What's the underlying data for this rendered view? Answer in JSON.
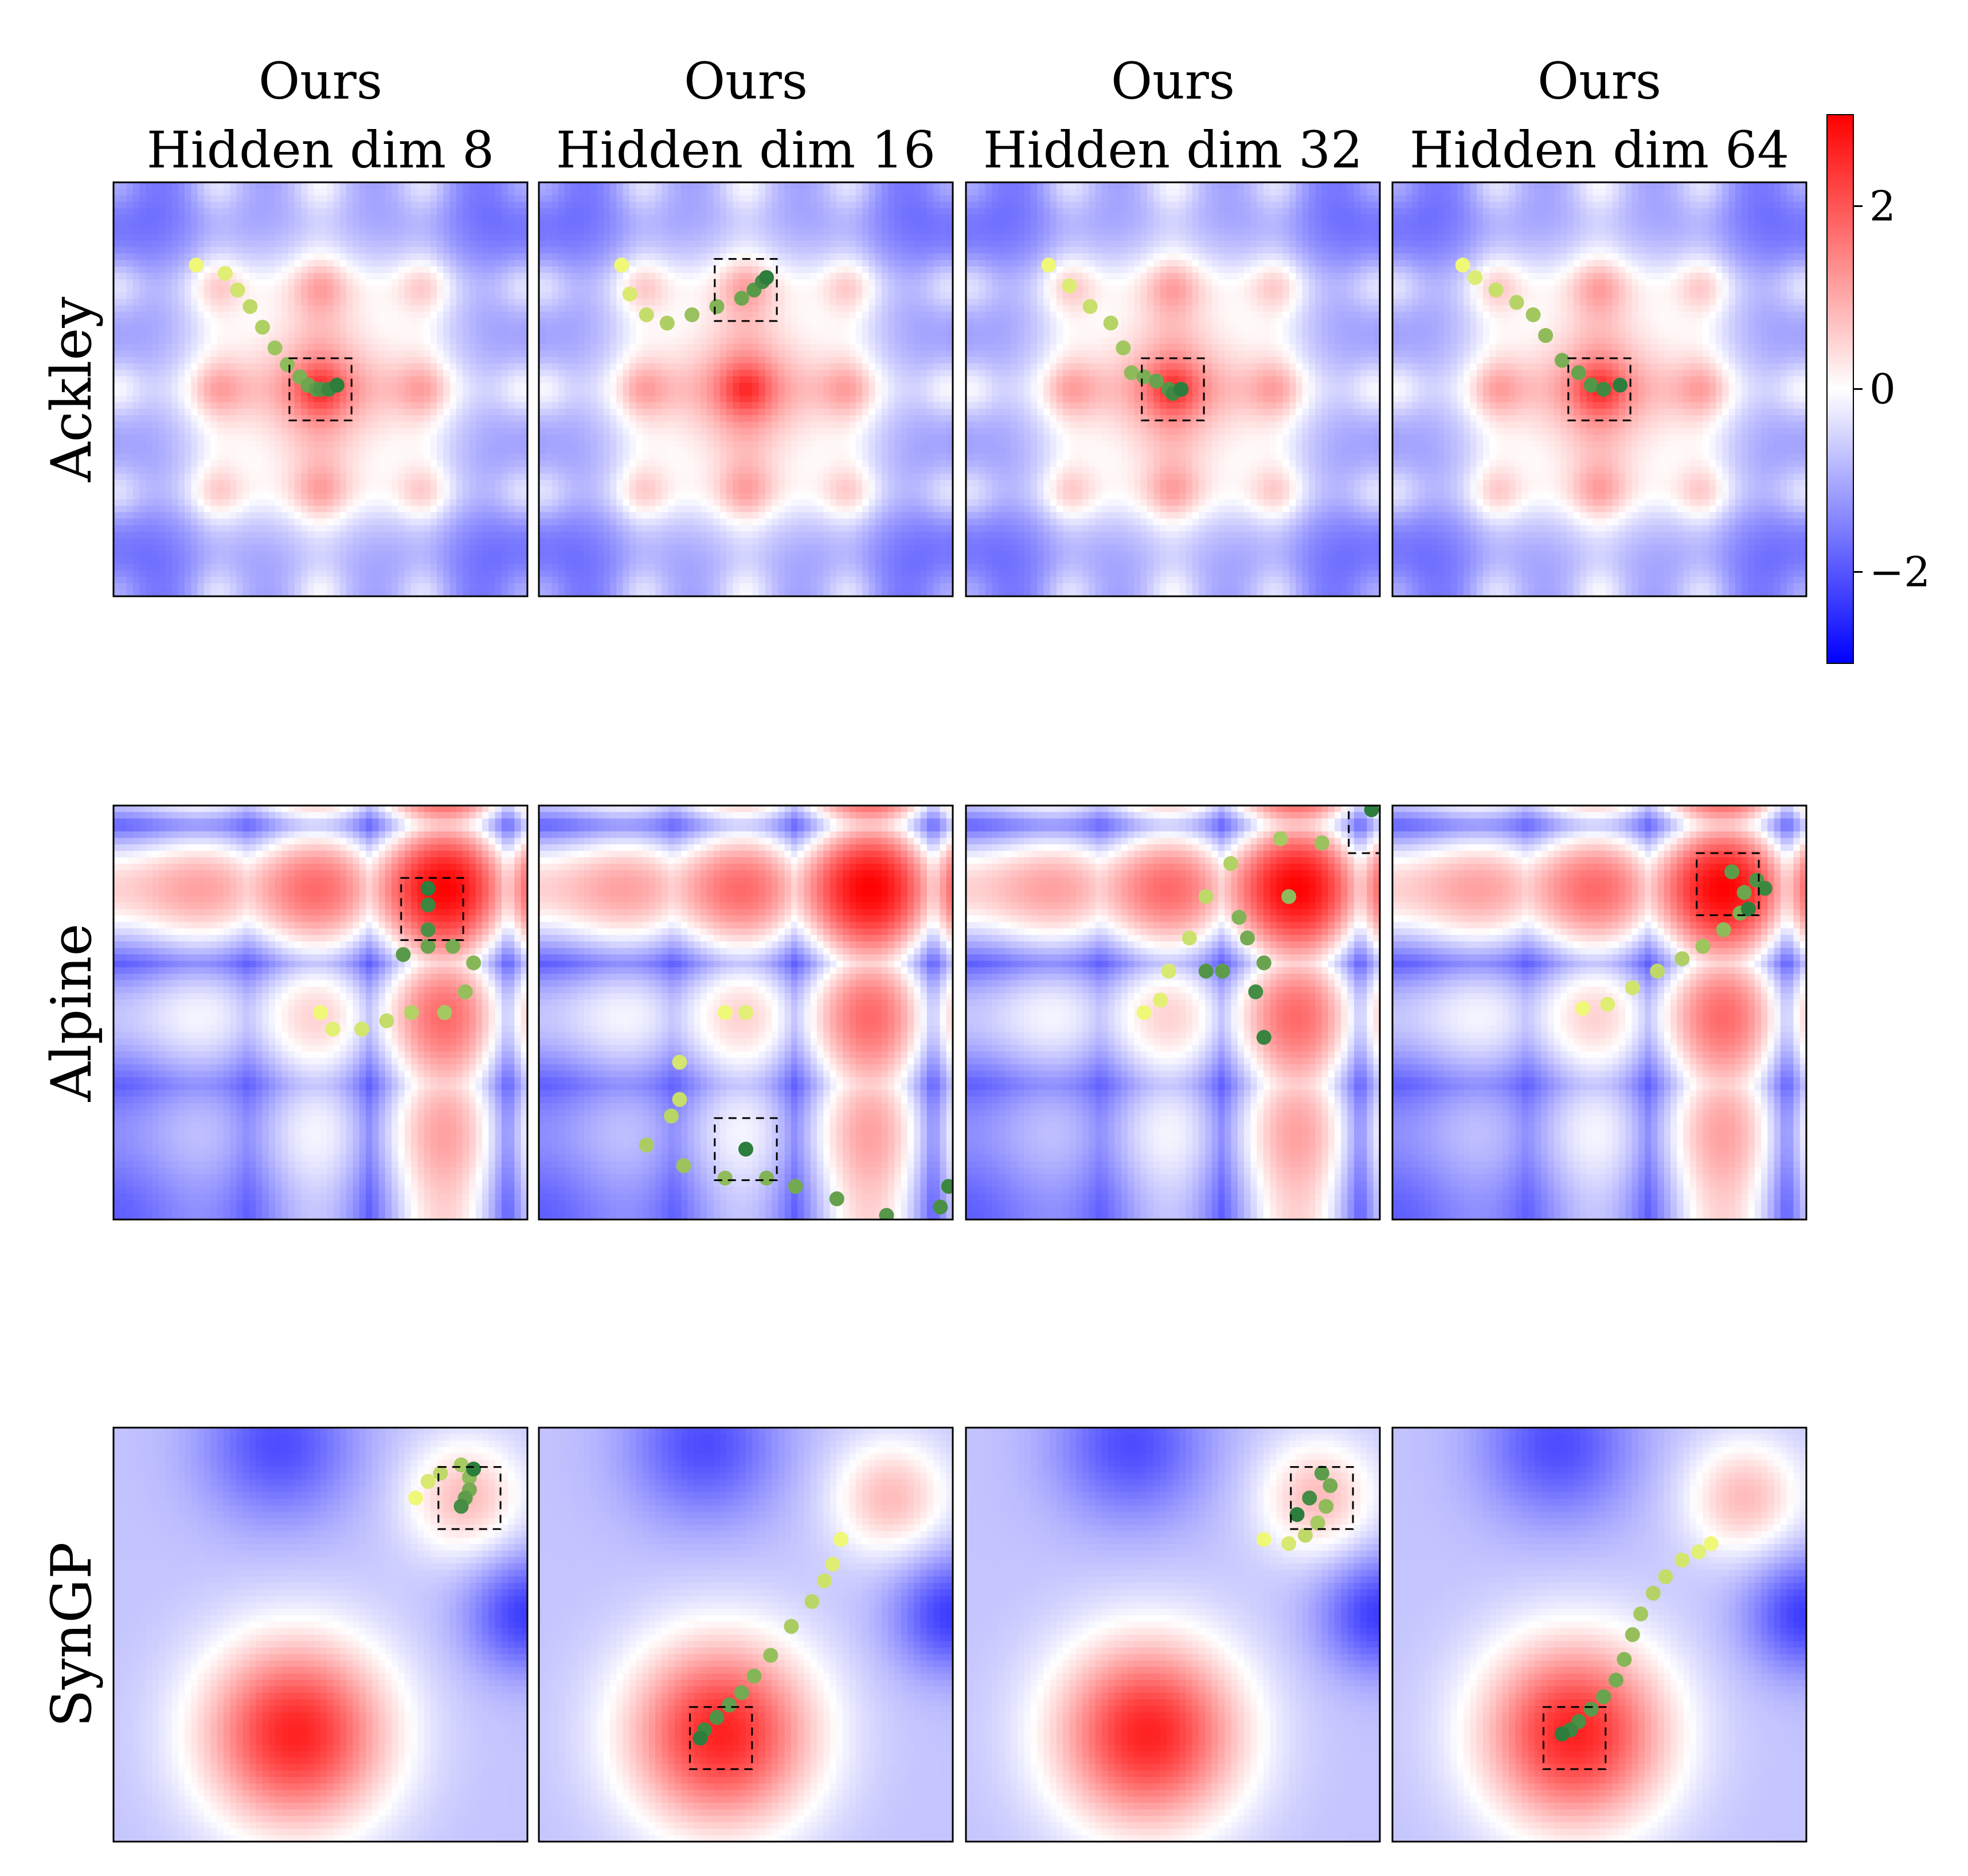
{
  "chart_data": {
    "type": "heatmap",
    "columns": [
      {
        "title_line1": "Ours",
        "title_line2": "Hidden dim 8"
      },
      {
        "title_line1": "Ours",
        "title_line2": "Hidden dim 16"
      },
      {
        "title_line1": "Ours",
        "title_line2": "Hidden dim 32"
      },
      {
        "title_line1": "Ours",
        "title_line2": "Hidden dim 64"
      }
    ],
    "rows": [
      {
        "label": "Ackley",
        "function": "ackley"
      },
      {
        "label": "Alpine",
        "function": "alpine"
      },
      {
        "label": "SynGP",
        "function": "syngp"
      }
    ],
    "domain": {
      "x": [
        0,
        1
      ],
      "y": [
        0,
        1
      ]
    },
    "colorbar": {
      "colormap": "bwr",
      "range": [
        -3,
        3
      ],
      "ticks": [
        -2,
        0,
        2
      ],
      "tick_labels": [
        "−2",
        "0",
        "2"
      ]
    },
    "marker_colormap": "summer (yellow = early iteration, green = late iteration)",
    "panels": [
      {
        "row": 0,
        "col": 0,
        "trajectory": [
          [
            0.2,
            0.8
          ],
          [
            0.27,
            0.78
          ],
          [
            0.3,
            0.74
          ],
          [
            0.33,
            0.7
          ],
          [
            0.36,
            0.65
          ],
          [
            0.39,
            0.6
          ],
          [
            0.42,
            0.56
          ],
          [
            0.45,
            0.53
          ],
          [
            0.47,
            0.51
          ],
          [
            0.49,
            0.5
          ],
          [
            0.5,
            0.5
          ],
          [
            0.52,
            0.5
          ],
          [
            0.54,
            0.51
          ]
        ],
        "box": {
          "center": [
            0.5,
            0.5
          ],
          "size": [
            0.15,
            0.15
          ]
        }
      },
      {
        "row": 0,
        "col": 1,
        "trajectory": [
          [
            0.2,
            0.8
          ],
          [
            0.22,
            0.73
          ],
          [
            0.26,
            0.68
          ],
          [
            0.31,
            0.66
          ],
          [
            0.37,
            0.68
          ],
          [
            0.43,
            0.7
          ],
          [
            0.49,
            0.72
          ],
          [
            0.52,
            0.74
          ],
          [
            0.54,
            0.76
          ],
          [
            0.55,
            0.77
          ]
        ],
        "box": {
          "center": [
            0.5,
            0.74
          ],
          "size": [
            0.15,
            0.15
          ]
        }
      },
      {
        "row": 0,
        "col": 2,
        "trajectory": [
          [
            0.2,
            0.8
          ],
          [
            0.25,
            0.75
          ],
          [
            0.3,
            0.7
          ],
          [
            0.35,
            0.66
          ],
          [
            0.38,
            0.6
          ],
          [
            0.4,
            0.54
          ],
          [
            0.43,
            0.53
          ],
          [
            0.46,
            0.52
          ],
          [
            0.49,
            0.5
          ],
          [
            0.5,
            0.49
          ],
          [
            0.52,
            0.5
          ]
        ],
        "box": {
          "center": [
            0.5,
            0.5
          ],
          "size": [
            0.15,
            0.15
          ]
        }
      },
      {
        "row": 0,
        "col": 3,
        "trajectory": [
          [
            0.17,
            0.8
          ],
          [
            0.2,
            0.77
          ],
          [
            0.25,
            0.74
          ],
          [
            0.3,
            0.71
          ],
          [
            0.34,
            0.68
          ],
          [
            0.37,
            0.63
          ],
          [
            0.41,
            0.57
          ],
          [
            0.45,
            0.54
          ],
          [
            0.48,
            0.51
          ],
          [
            0.51,
            0.5
          ],
          [
            0.55,
            0.51
          ]
        ],
        "box": {
          "center": [
            0.5,
            0.5
          ],
          "size": [
            0.15,
            0.15
          ]
        }
      },
      {
        "row": 1,
        "col": 0,
        "trajectory": [
          [
            0.5,
            0.5
          ],
          [
            0.53,
            0.46
          ],
          [
            0.6,
            0.46
          ],
          [
            0.66,
            0.48
          ],
          [
            0.72,
            0.5
          ],
          [
            0.8,
            0.5
          ],
          [
            0.85,
            0.55
          ],
          [
            0.87,
            0.62
          ],
          [
            0.82,
            0.66
          ],
          [
            0.76,
            0.66
          ],
          [
            0.7,
            0.64
          ],
          [
            0.76,
            0.7
          ],
          [
            0.76,
            0.76
          ],
          [
            0.76,
            0.8
          ]
        ],
        "box": {
          "center": [
            0.77,
            0.75
          ],
          "size": [
            0.15,
            0.15
          ]
        }
      },
      {
        "row": 1,
        "col": 1,
        "trajectory": [
          [
            0.45,
            0.5
          ],
          [
            0.5,
            0.5
          ],
          [
            0.34,
            0.38
          ],
          [
            0.34,
            0.29
          ],
          [
            0.32,
            0.25
          ],
          [
            0.26,
            0.18
          ],
          [
            0.35,
            0.13
          ],
          [
            0.45,
            0.1
          ],
          [
            0.55,
            0.1
          ],
          [
            0.62,
            0.08
          ],
          [
            0.72,
            0.05
          ],
          [
            0.84,
            0.01
          ],
          [
            0.97,
            0.03
          ],
          [
            0.99,
            0.08
          ],
          [
            0.5,
            0.17
          ]
        ],
        "box": {
          "center": [
            0.5,
            0.17
          ],
          "size": [
            0.15,
            0.15
          ]
        }
      },
      {
        "row": 1,
        "col": 2,
        "trajectory": [
          [
            0.43,
            0.5
          ],
          [
            0.47,
            0.53
          ],
          [
            0.49,
            0.6
          ],
          [
            0.54,
            0.68
          ],
          [
            0.58,
            0.78
          ],
          [
            0.64,
            0.86
          ],
          [
            0.76,
            0.92
          ],
          [
            0.86,
            0.91
          ],
          [
            0.78,
            0.78
          ],
          [
            0.66,
            0.73
          ],
          [
            0.68,
            0.68
          ],
          [
            0.72,
            0.62
          ],
          [
            0.62,
            0.6
          ],
          [
            0.58,
            0.6
          ],
          [
            0.7,
            0.55
          ],
          [
            0.72,
            0.44
          ],
          [
            0.98,
            0.99
          ]
        ],
        "box": {
          "center": [
            1.0,
            0.96
          ],
          "size": [
            0.15,
            0.15
          ]
        }
      },
      {
        "row": 1,
        "col": 3,
        "trajectory": [
          [
            0.46,
            0.51
          ],
          [
            0.52,
            0.52
          ],
          [
            0.58,
            0.56
          ],
          [
            0.64,
            0.6
          ],
          [
            0.7,
            0.63
          ],
          [
            0.75,
            0.66
          ],
          [
            0.8,
            0.7
          ],
          [
            0.84,
            0.74
          ],
          [
            0.85,
            0.79
          ],
          [
            0.82,
            0.84
          ],
          [
            0.88,
            0.82
          ],
          [
            0.9,
            0.8
          ],
          [
            0.86,
            0.75
          ]
        ],
        "box": {
          "center": [
            0.81,
            0.81
          ],
          "size": [
            0.15,
            0.15
          ]
        }
      },
      {
        "row": 2,
        "col": 0,
        "trajectory": [
          [
            0.73,
            0.83
          ],
          [
            0.76,
            0.87
          ],
          [
            0.79,
            0.89
          ],
          [
            0.84,
            0.91
          ],
          [
            0.86,
            0.88
          ],
          [
            0.86,
            0.85
          ],
          [
            0.85,
            0.83
          ],
          [
            0.84,
            0.81
          ],
          [
            0.87,
            0.9
          ]
        ],
        "box": {
          "center": [
            0.86,
            0.83
          ],
          "size": [
            0.15,
            0.15
          ]
        }
      },
      {
        "row": 2,
        "col": 1,
        "trajectory": [
          [
            0.73,
            0.73
          ],
          [
            0.71,
            0.67
          ],
          [
            0.69,
            0.63
          ],
          [
            0.66,
            0.58
          ],
          [
            0.61,
            0.52
          ],
          [
            0.56,
            0.45
          ],
          [
            0.52,
            0.4
          ],
          [
            0.49,
            0.36
          ],
          [
            0.46,
            0.33
          ],
          [
            0.43,
            0.3
          ],
          [
            0.4,
            0.27
          ],
          [
            0.39,
            0.25
          ]
        ],
        "box": {
          "center": [
            0.44,
            0.25
          ],
          "size": [
            0.15,
            0.15
          ]
        }
      },
      {
        "row": 2,
        "col": 2,
        "trajectory": [
          [
            0.72,
            0.73
          ],
          [
            0.78,
            0.72
          ],
          [
            0.82,
            0.74
          ],
          [
            0.85,
            0.77
          ],
          [
            0.87,
            0.81
          ],
          [
            0.88,
            0.86
          ],
          [
            0.86,
            0.89
          ],
          [
            0.83,
            0.83
          ],
          [
            0.8,
            0.79
          ]
        ],
        "box": {
          "center": [
            0.86,
            0.83
          ],
          "size": [
            0.15,
            0.15
          ]
        }
      },
      {
        "row": 2,
        "col": 3,
        "trajectory": [
          [
            0.77,
            0.72
          ],
          [
            0.74,
            0.7
          ],
          [
            0.7,
            0.68
          ],
          [
            0.66,
            0.64
          ],
          [
            0.63,
            0.6
          ],
          [
            0.6,
            0.55
          ],
          [
            0.58,
            0.5
          ],
          [
            0.56,
            0.44
          ],
          [
            0.54,
            0.39
          ],
          [
            0.51,
            0.35
          ],
          [
            0.48,
            0.32
          ],
          [
            0.45,
            0.29
          ],
          [
            0.43,
            0.27
          ],
          [
            0.41,
            0.26
          ]
        ],
        "box": {
          "center": [
            0.44,
            0.25
          ],
          "size": [
            0.15,
            0.15
          ]
        }
      }
    ]
  }
}
